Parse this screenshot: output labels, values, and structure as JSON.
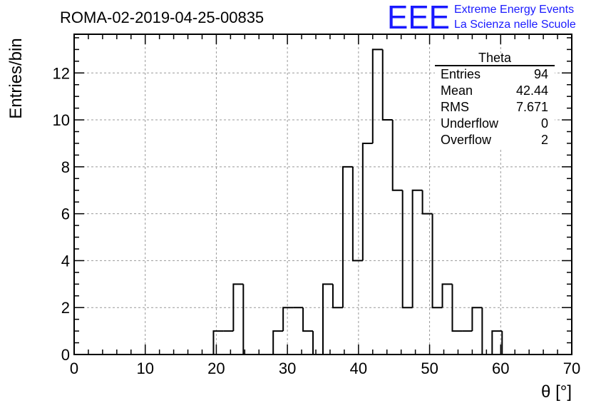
{
  "chart_data": {
    "type": "histogram",
    "title": "ROMA-02-2019-04-25-00835",
    "xlabel": "θ [°]",
    "ylabel": "Entries/bin",
    "xlim": [
      0,
      70
    ],
    "ylim": [
      0,
      13.65
    ],
    "bin_width": 1.4,
    "bins": [
      {
        "x0": 19.6,
        "value": 1
      },
      {
        "x0": 21.0,
        "value": 1
      },
      {
        "x0": 22.4,
        "value": 3
      },
      {
        "x0": 23.8,
        "value": 0
      },
      {
        "x0": 25.2,
        "value": 0
      },
      {
        "x0": 26.6,
        "value": 0
      },
      {
        "x0": 28.0,
        "value": 1
      },
      {
        "x0": 29.4,
        "value": 2
      },
      {
        "x0": 30.8,
        "value": 2
      },
      {
        "x0": 32.2,
        "value": 1
      },
      {
        "x0": 33.6,
        "value": 0
      },
      {
        "x0": 35.0,
        "value": 3
      },
      {
        "x0": 36.4,
        "value": 2
      },
      {
        "x0": 37.8,
        "value": 8
      },
      {
        "x0": 39.2,
        "value": 4
      },
      {
        "x0": 40.6,
        "value": 9
      },
      {
        "x0": 42.0,
        "value": 13
      },
      {
        "x0": 43.4,
        "value": 10
      },
      {
        "x0": 44.8,
        "value": 7
      },
      {
        "x0": 46.2,
        "value": 2
      },
      {
        "x0": 47.6,
        "value": 7
      },
      {
        "x0": 49.0,
        "value": 6
      },
      {
        "x0": 50.4,
        "value": 2
      },
      {
        "x0": 51.8,
        "value": 3
      },
      {
        "x0": 53.2,
        "value": 1
      },
      {
        "x0": 54.6,
        "value": 1
      },
      {
        "x0": 56.0,
        "value": 2
      },
      {
        "x0": 57.4,
        "value": 0
      },
      {
        "x0": 58.8,
        "value": 1
      }
    ],
    "x_ticks": [
      0,
      10,
      20,
      30,
      40,
      50,
      60,
      70
    ],
    "y_ticks": [
      0,
      2,
      4,
      6,
      8,
      10,
      12
    ],
    "grid": true,
    "stats_box": {
      "title": "Theta",
      "rows": [
        {
          "label": "Entries",
          "value": "94"
        },
        {
          "label": "Mean",
          "value": "42.44"
        },
        {
          "label": "RMS",
          "value": "7.671"
        },
        {
          "label": "Underflow",
          "value": "0"
        },
        {
          "label": "Overflow",
          "value": "2"
        }
      ]
    }
  },
  "logo": {
    "mark": "EEE",
    "line1": "Extreme Energy Events",
    "line2": "La Scienza nelle Scuole"
  },
  "colors": {
    "logo": "#1a1aff",
    "line": "#000000",
    "grid": "#999999"
  }
}
